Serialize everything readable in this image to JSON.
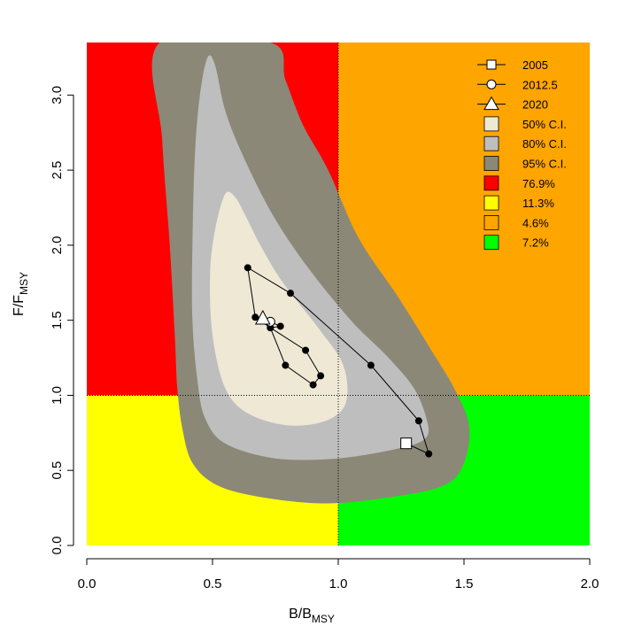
{
  "chart_data": {
    "type": "scatter",
    "title": "",
    "xlabel": {
      "main": "B",
      "sep": "/",
      "sub_base": "B",
      "subscript": "MSY"
    },
    "ylabel": {
      "main": "F",
      "sep": "/",
      "sub_base": "F",
      "subscript": "MSY"
    },
    "xlim": [
      0,
      2
    ],
    "ylim": [
      0,
      3.35
    ],
    "x_ticks": [
      "0.0",
      "0.5",
      "1.0",
      "1.5",
      "2.0"
    ],
    "y_ticks": [
      "0.0",
      "0.5",
      "1.0",
      "1.5",
      "2.0",
      "2.5",
      "3.0"
    ],
    "reference_lines": {
      "x": 1.0,
      "y": 1.0
    },
    "quadrants": [
      {
        "name": "upper-left",
        "color": "#FF0000"
      },
      {
        "name": "lower-left",
        "color": "#FFFF00"
      },
      {
        "name": "upper-right",
        "color": "#FFA500"
      },
      {
        "name": "lower-right",
        "color": "#00FF00"
      }
    ],
    "confidence_regions": [
      {
        "label": "95% C.I.",
        "color": "#8B8878",
        "polygon": [
          [
            0.29,
            3.35
          ],
          [
            0.73,
            3.35
          ],
          [
            0.79,
            3.1
          ],
          [
            0.86,
            2.8
          ],
          [
            0.96,
            2.5
          ],
          [
            1.08,
            2.05
          ],
          [
            1.24,
            1.65
          ],
          [
            1.37,
            1.3
          ],
          [
            1.46,
            1.05
          ],
          [
            1.52,
            0.8
          ],
          [
            1.5,
            0.55
          ],
          [
            1.42,
            0.4
          ],
          [
            1.2,
            0.32
          ],
          [
            0.95,
            0.28
          ],
          [
            0.7,
            0.32
          ],
          [
            0.52,
            0.4
          ],
          [
            0.42,
            0.55
          ],
          [
            0.38,
            0.78
          ],
          [
            0.36,
            1.05
          ],
          [
            0.35,
            1.4
          ],
          [
            0.33,
            2.0
          ],
          [
            0.3,
            2.7
          ]
        ]
      },
      {
        "label": "80% C.I.",
        "color": "#BEBEBE",
        "polygon": [
          [
            0.48,
            3.25
          ],
          [
            0.51,
            3.2
          ],
          [
            0.55,
            2.9
          ],
          [
            0.62,
            2.6
          ],
          [
            0.74,
            2.2
          ],
          [
            0.88,
            1.85
          ],
          [
            1.05,
            1.5
          ],
          [
            1.2,
            1.25
          ],
          [
            1.3,
            1.05
          ],
          [
            1.35,
            0.85
          ],
          [
            1.35,
            0.72
          ],
          [
            1.25,
            0.65
          ],
          [
            1.0,
            0.58
          ],
          [
            0.75,
            0.58
          ],
          [
            0.55,
            0.68
          ],
          [
            0.47,
            0.85
          ],
          [
            0.44,
            1.1
          ],
          [
            0.42,
            1.5
          ],
          [
            0.42,
            2.0
          ],
          [
            0.43,
            2.6
          ],
          [
            0.45,
            3.0
          ]
        ]
      },
      {
        "label": "50% C.I.",
        "color": "#EEE8D5",
        "polygon": [
          [
            0.55,
            2.34
          ],
          [
            0.59,
            2.32
          ],
          [
            0.63,
            2.2
          ],
          [
            0.69,
            2.0
          ],
          [
            0.78,
            1.75
          ],
          [
            0.92,
            1.45
          ],
          [
            1.02,
            1.2
          ],
          [
            1.03,
            0.95
          ],
          [
            0.95,
            0.83
          ],
          [
            0.8,
            0.8
          ],
          [
            0.64,
            0.88
          ],
          [
            0.55,
            1.05
          ],
          [
            0.5,
            1.4
          ],
          [
            0.49,
            1.8
          ],
          [
            0.51,
            2.1
          ]
        ]
      }
    ],
    "series": [
      {
        "x": [
          1.27,
          1.36,
          1.32,
          1.13,
          0.81,
          0.64,
          0.67,
          0.73,
          0.87,
          0.93,
          0.9,
          0.79,
          0.73,
          0.77,
          0.73,
          0.7
        ],
        "y": [
          0.68,
          0.61,
          0.83,
          1.2,
          1.68,
          1.85,
          1.52,
          1.45,
          1.3,
          1.13,
          1.07,
          1.2,
          1.45,
          1.46,
          1.49,
          1.51
        ]
      }
    ],
    "markers": [
      {
        "label": "2005",
        "shape": "square",
        "x": 1.27,
        "y": 0.68
      },
      {
        "label": "2012.5",
        "shape": "circle",
        "x": 0.73,
        "y": 1.49
      },
      {
        "label": "2020",
        "shape": "triangle",
        "x": 0.7,
        "y": 1.51
      }
    ],
    "legend": {
      "position": "top-right",
      "items": [
        {
          "label": "2005",
          "kind": "line-square"
        },
        {
          "label": "2012.5",
          "kind": "line-circle"
        },
        {
          "label": "2020",
          "kind": "line-triangle"
        },
        {
          "label": "50% C.I.",
          "kind": "box",
          "color": "#EEE8D5"
        },
        {
          "label": "80% C.I.",
          "kind": "box",
          "color": "#BEBEBE"
        },
        {
          "label": "95% C.I.",
          "kind": "box",
          "color": "#8B8878"
        },
        {
          "label": "76.9%",
          "kind": "box",
          "color": "#FF0000"
        },
        {
          "label": "11.3%",
          "kind": "box",
          "color": "#FFFF00"
        },
        {
          "label": "4.6%",
          "kind": "box",
          "color": "#FFA500"
        },
        {
          "label": "7.2%",
          "kind": "box",
          "color": "#00FF00"
        }
      ]
    }
  }
}
